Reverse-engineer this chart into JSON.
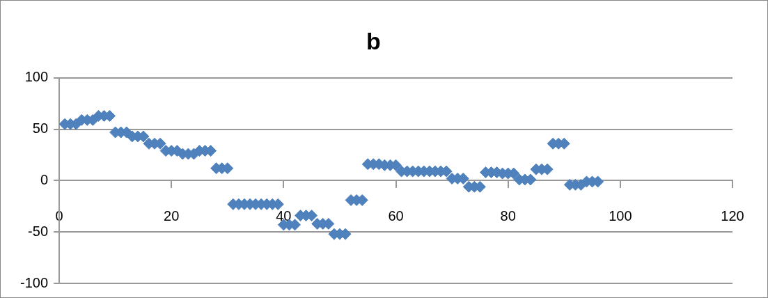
{
  "chart_data": {
    "type": "scatter",
    "title": "b",
    "x": [
      1,
      2,
      3,
      4,
      5,
      6,
      7,
      8,
      9,
      10,
      11,
      12,
      13,
      14,
      15,
      16,
      17,
      18,
      19,
      20,
      21,
      22,
      23,
      24,
      25,
      26,
      27,
      28,
      29,
      30,
      31,
      32,
      33,
      34,
      35,
      36,
      37,
      38,
      39,
      40,
      41,
      42,
      43,
      44,
      45,
      46,
      47,
      48,
      49,
      50,
      51,
      52,
      53,
      54,
      55,
      56,
      57,
      58,
      59,
      60,
      61,
      62,
      63,
      64,
      65,
      66,
      67,
      68,
      69,
      70,
      71,
      72,
      73,
      74,
      75,
      76,
      77,
      78,
      79,
      80,
      81,
      82,
      83,
      84,
      85,
      86,
      87,
      88,
      89,
      90,
      91,
      92,
      93,
      94,
      95,
      96
    ],
    "series": [
      {
        "color": "#4f81bd",
        "values": [
          55,
          55,
          55,
          59,
          59,
          59,
          63,
          63,
          63,
          47,
          47,
          47,
          43,
          43,
          43,
          36,
          36,
          36,
          29,
          29,
          29,
          26,
          26,
          26,
          29,
          29,
          29,
          12,
          12,
          12,
          -23,
          -23,
          -23,
          -23,
          -23,
          -23,
          -23,
          -23,
          -23,
          -43,
          -43,
          -43,
          -34,
          -34,
          -34,
          -42,
          -42,
          -42,
          -52,
          -52,
          -52,
          -19,
          -19,
          -19,
          16,
          16,
          16,
          15,
          15,
          15,
          9,
          9,
          9,
          9,
          9,
          9,
          9,
          9,
          9,
          2,
          2,
          2,
          -6,
          -6,
          -6,
          8,
          8,
          8,
          7,
          7,
          7,
          1,
          1,
          1,
          11,
          11,
          11,
          36,
          36,
          36,
          -4,
          -4,
          -4,
          -1,
          -1,
          -1
        ]
      }
    ],
    "xlim": [
      0,
      120
    ],
    "xticks": [
      0,
      20,
      40,
      60,
      80,
      100,
      120
    ],
    "ylim": [
      -100,
      100
    ],
    "yticks": [
      -100,
      -50,
      0,
      50,
      100
    ],
    "grid": "y",
    "marker": "diamond",
    "legend": false
  }
}
